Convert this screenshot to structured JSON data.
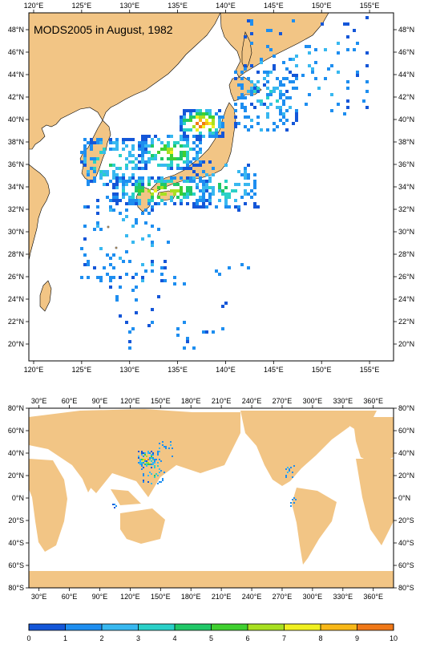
{
  "title": "MODS2005 in August, 1982",
  "map_top": {
    "lon_range": [
      119.5,
      157.5
    ],
    "lat_range": [
      18.5,
      49.5
    ],
    "lon_ticks": [
      120,
      125,
      130,
      135,
      140,
      145,
      150,
      155
    ],
    "lat_ticks": [
      20,
      22,
      24,
      26,
      28,
      30,
      32,
      34,
      36,
      38,
      40,
      42,
      44,
      46,
      48
    ],
    "lon_labels": [
      "120°E",
      "125°E",
      "130°E",
      "135°E",
      "140°E",
      "145°E",
      "150°E",
      "155°E"
    ],
    "lat_labels": [
      "20°N",
      "22°N",
      "24°N",
      "26°N",
      "28°N",
      "30°N",
      "32°N",
      "34°N",
      "36°N",
      "38°N",
      "40°N",
      "42°N",
      "44°N",
      "46°N",
      "48°N"
    ]
  },
  "map_bottom": {
    "lon_range": [
      20,
      380
    ],
    "lat_range": [
      -80,
      80
    ],
    "lon_ticks": [
      30,
      60,
      90,
      120,
      150,
      180,
      210,
      240,
      270,
      300,
      330,
      360
    ],
    "lat_ticks": [
      -80,
      -60,
      -40,
      -20,
      0,
      20,
      40,
      60,
      80
    ],
    "lon_labels": [
      "30°E",
      "60°E",
      "90°E",
      "120°E",
      "150°E",
      "180°E",
      "210°E",
      "240°E",
      "270°E",
      "300°E",
      "330°E",
      "360°E"
    ],
    "lat_labels": [
      "80°S",
      "60°S",
      "40°S",
      "20°S",
      "0°N",
      "20°N",
      "40°N",
      "60°N",
      "80°N"
    ]
  },
  "colorbar": {
    "labels": [
      "0",
      "1",
      "2",
      "3",
      "4",
      "5",
      "6",
      "7",
      "8",
      "9",
      "10"
    ],
    "colors": [
      "#1456d8",
      "#1e8ef0",
      "#38b8f0",
      "#2ad0c8",
      "#20c868",
      "#40d030",
      "#a8e020",
      "#f0f020",
      "#f8b818",
      "#f07818",
      "#e82018"
    ]
  },
  "colors": {
    "land": "#f2c585",
    "ocean": "#ffffff",
    "frame": "#000000"
  }
}
